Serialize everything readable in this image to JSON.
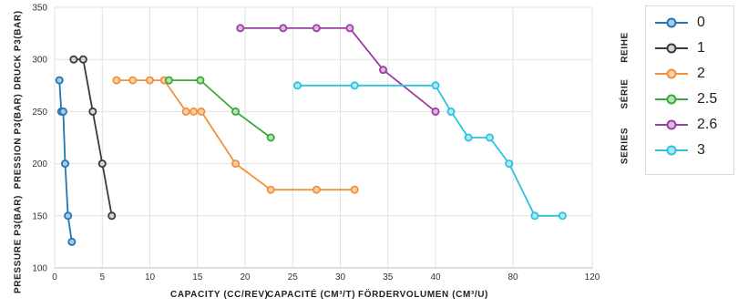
{
  "chart_data": {
    "type": "line",
    "xlabel_parts": [
      "CAPACITY (CC/REV)",
      "CAPACITÉ (CM³/T)",
      "FÖRDERVOLUMEN (CM³/U)"
    ],
    "ylabel_parts": [
      "PRESSURE P3(BAR)",
      "PRESSION P3(BAR)",
      "DRUCK P3(BAR)"
    ],
    "legend_title_parts": [
      "SERIES",
      "SÉRIE",
      "REIHE"
    ],
    "xlim": [
      0,
      120
    ],
    "ylim": [
      100,
      350
    ],
    "x_ticks": [
      0,
      5,
      10,
      15,
      20,
      25,
      30,
      35,
      40,
      80,
      120
    ],
    "y_ticks": [
      100,
      150,
      200,
      250,
      300,
      350
    ],
    "grid": true,
    "legend_position": "top-right",
    "series": [
      {
        "name": "0",
        "color": "#1f77b4",
        "points": [
          [
            0.5,
            280
          ],
          [
            0.7,
            250
          ],
          [
            0.9,
            250
          ],
          [
            1.1,
            200
          ],
          [
            1.4,
            150
          ],
          [
            1.8,
            125
          ]
        ]
      },
      {
        "name": "1",
        "color": "#3a3a3a",
        "points": [
          [
            2,
            300
          ],
          [
            3,
            300
          ],
          [
            4,
            250
          ],
          [
            5,
            200
          ],
          [
            6,
            150
          ]
        ]
      },
      {
        "name": "2",
        "color": "#f0923a",
        "points": [
          [
            6.5,
            280
          ],
          [
            8.2,
            280
          ],
          [
            10,
            280
          ],
          [
            11.5,
            280
          ],
          [
            13.8,
            250
          ],
          [
            14.6,
            250
          ],
          [
            15.4,
            250
          ],
          [
            19,
            200
          ],
          [
            22.7,
            175
          ],
          [
            27.5,
            175
          ],
          [
            31.5,
            175
          ]
        ]
      },
      {
        "name": "2.5",
        "color": "#3aab3a",
        "points": [
          [
            12,
            280
          ],
          [
            15.3,
            280
          ],
          [
            19,
            250
          ],
          [
            22.7,
            225
          ]
        ]
      },
      {
        "name": "2.6",
        "color": "#9b3fa3",
        "points": [
          [
            19.5,
            330
          ],
          [
            24,
            330
          ],
          [
            27.5,
            330
          ],
          [
            31,
            330
          ],
          [
            34.5,
            290
          ],
          [
            40,
            250
          ]
        ]
      },
      {
        "name": "3",
        "color": "#2cc3e0",
        "points": [
          [
            25.5,
            275
          ],
          [
            31.5,
            275
          ],
          [
            40,
            275
          ],
          [
            48,
            250
          ],
          [
            57,
            225
          ],
          [
            68,
            225
          ],
          [
            78,
            200
          ],
          [
            91,
            150
          ],
          [
            105,
            150
          ]
        ]
      }
    ]
  }
}
